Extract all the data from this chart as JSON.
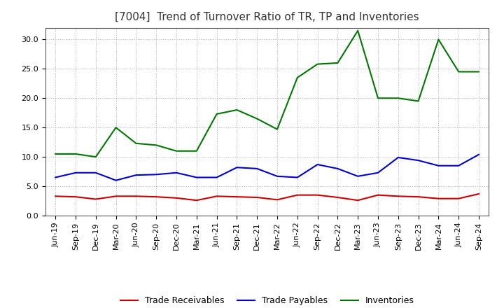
{
  "title": "[7004]  Trend of Turnover Ratio of TR, TP and Inventories",
  "x_labels": [
    "Jun-19",
    "Sep-19",
    "Dec-19",
    "Mar-20",
    "Jun-20",
    "Sep-20",
    "Dec-20",
    "Mar-21",
    "Jun-21",
    "Sep-21",
    "Dec-21",
    "Mar-22",
    "Jun-22",
    "Sep-22",
    "Dec-22",
    "Mar-23",
    "Jun-23",
    "Sep-23",
    "Dec-23",
    "Mar-24",
    "Jun-24",
    "Sep-24"
  ],
  "trade_receivables": [
    3.3,
    3.2,
    2.8,
    3.3,
    3.3,
    3.2,
    3.0,
    2.6,
    3.3,
    3.2,
    3.1,
    2.7,
    3.5,
    3.5,
    3.1,
    2.6,
    3.5,
    3.3,
    3.2,
    2.9,
    2.9,
    3.7
  ],
  "trade_payables": [
    6.5,
    7.3,
    7.3,
    6.0,
    6.9,
    7.0,
    7.3,
    6.5,
    6.5,
    8.2,
    8.0,
    6.7,
    6.5,
    8.7,
    8.0,
    6.7,
    7.3,
    9.9,
    9.4,
    8.5,
    8.5,
    10.4
  ],
  "inventories": [
    10.5,
    10.5,
    10.0,
    15.0,
    12.3,
    12.0,
    11.0,
    11.0,
    17.3,
    18.0,
    16.5,
    14.7,
    23.5,
    25.8,
    26.0,
    31.5,
    20.0,
    20.0,
    19.5,
    30.0,
    24.5,
    24.5
  ],
  "tr_color": "#cc0000",
  "tp_color": "#0000cc",
  "inv_color": "#007700",
  "ylim": [
    0.0,
    32.0
  ],
  "yticks": [
    0.0,
    5.0,
    10.0,
    15.0,
    20.0,
    25.0,
    30.0
  ],
  "background_color": "#ffffff",
  "plot_bg_color": "#ffffff",
  "grid_color": "#999999",
  "legend_labels": [
    "Trade Receivables",
    "Trade Payables",
    "Inventories"
  ],
  "title_fontsize": 11,
  "tick_fontsize": 8,
  "legend_fontsize": 9
}
